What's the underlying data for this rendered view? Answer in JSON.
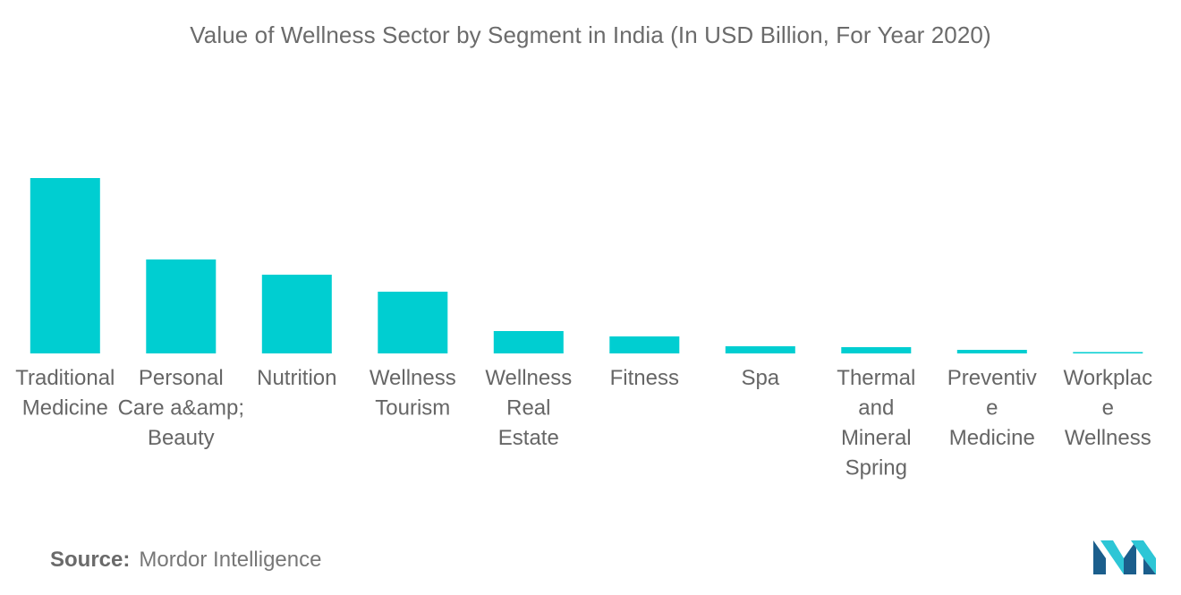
{
  "header": {
    "title": "Value of Wellness Sector by Segment in India (In USD Billion, For Year 2020)"
  },
  "footer": {
    "source_label": "Source:",
    "source_value": "Mordor Intelligence",
    "logo_icon": "mordor-intelligence-logo-icon"
  },
  "colors": {
    "bar": "#00CED1",
    "text": "#666666",
    "logo_dark": "#1B5E8C",
    "logo_light": "#2DC6D6"
  },
  "chart_data": {
    "type": "bar",
    "title": "Value of Wellness Sector by Segment in India (In USD Billion, For Year 2020)",
    "xlabel": "",
    "ylabel": "",
    "grid": false,
    "legend": "none",
    "ylim": [
      0,
      25
    ],
    "categories": [
      "Traditional Medicine",
      "Personal Care a&amp; Beauty",
      "Nutrition",
      "Wellness Tourism",
      "Wellness Real Estate",
      "Fitness",
      "Spa",
      "Thermal and Mineral Spring",
      "Preventive Medicine",
      "Workplace Wellness"
    ],
    "category_label_lines": [
      [
        "Traditional",
        "Medicine"
      ],
      [
        "Personal",
        "Care a&amp;",
        "Beauty"
      ],
      [
        "Nutrition"
      ],
      [
        "Wellness",
        "Tourism"
      ],
      [
        "Wellness",
        "Real",
        "Estate"
      ],
      [
        "Fitness"
      ],
      [
        "Spa"
      ],
      [
        "Thermal",
        "and",
        "Mineral",
        "Spring"
      ],
      [
        "Preventiv",
        "e",
        "Medicine"
      ],
      [
        "Workplac",
        "e",
        "Wellness"
      ]
    ],
    "values": [
      19.6,
      10.5,
      8.8,
      6.9,
      2.5,
      1.9,
      0.8,
      0.7,
      0.4,
      0.15
    ]
  }
}
